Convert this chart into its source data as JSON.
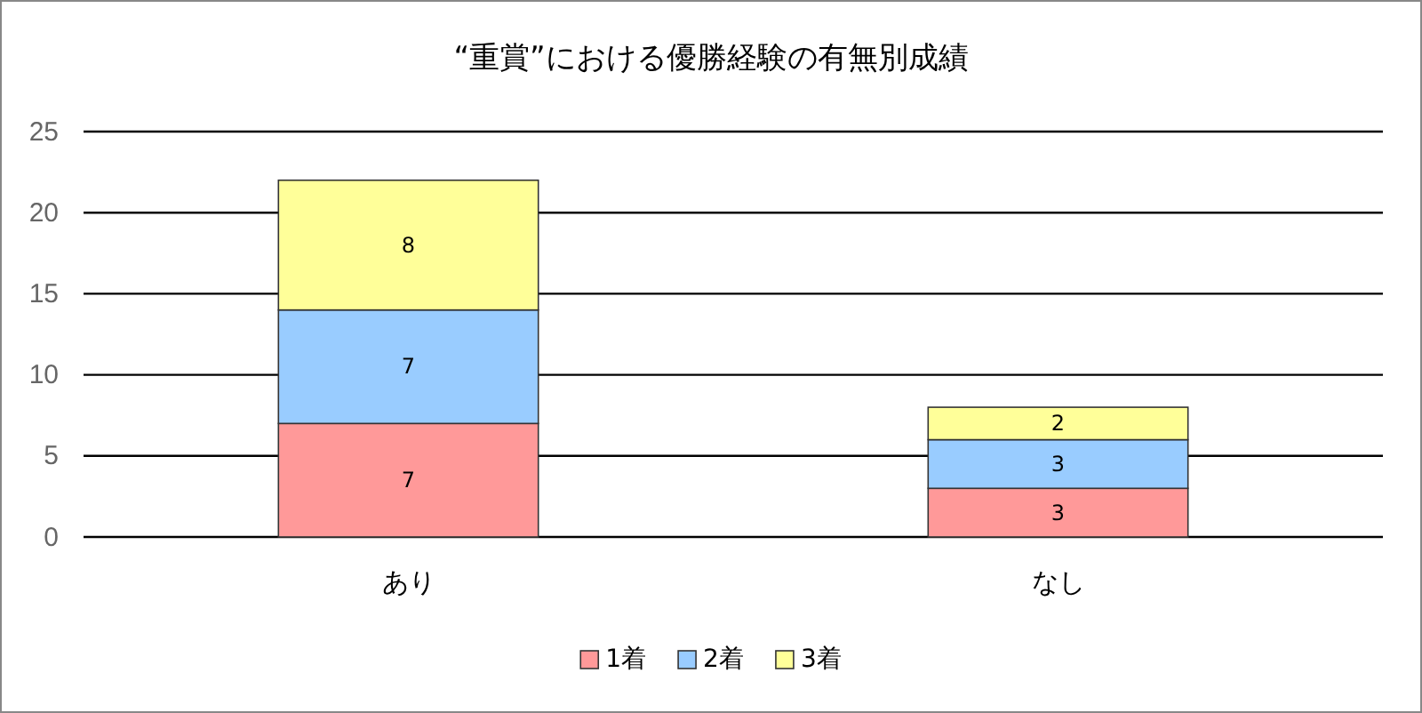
{
  "chart_data": {
    "type": "bar",
    "title": "“重賞”における優勝経験の有無別成績",
    "categories": [
      "あり",
      "なし"
    ],
    "series": [
      {
        "name": "1着",
        "color": "#ff9999",
        "values": [
          7,
          3
        ]
      },
      {
        "name": "2着",
        "color": "#99ccff",
        "values": [
          7,
          3
        ]
      },
      {
        "name": "3着",
        "color": "#ffff99",
        "values": [
          8,
          2
        ]
      }
    ],
    "stacked": true,
    "ylim": [
      0,
      25
    ],
    "yticks": [
      0,
      5,
      10,
      15,
      20,
      25
    ],
    "grid": "y",
    "legend": "bottom",
    "data_labels": true
  }
}
